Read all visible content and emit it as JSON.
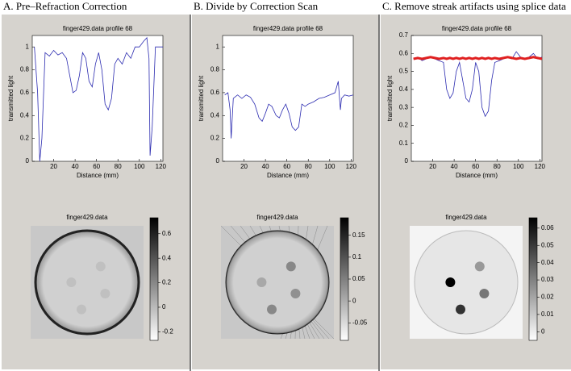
{
  "chart_data": [
    {
      "type": "line",
      "title": "finger429.data profile 68",
      "xlabel": "Distance (mm)",
      "ylabel": "transmitted light",
      "x": [
        2,
        5,
        7,
        9,
        12,
        16,
        20,
        24,
        28,
        32,
        35,
        38,
        41,
        44,
        47,
        50,
        53,
        56,
        59,
        62,
        65,
        68,
        71,
        74,
        77,
        80,
        84,
        88,
        92,
        96,
        100,
        104,
        107,
        109,
        110,
        112,
        115,
        118,
        122
      ],
      "series": [
        {
          "color": "#2b2bb0",
          "values": [
            1,
            0.6,
            0,
            0.2,
            0.95,
            0.92,
            0.97,
            0.93,
            0.95,
            0.9,
            0.75,
            0.6,
            0.62,
            0.75,
            0.95,
            0.9,
            0.7,
            0.65,
            0.85,
            0.95,
            0.8,
            0.5,
            0.45,
            0.55,
            0.85,
            0.9,
            0.85,
            0.95,
            0.9,
            1.0,
            1.0,
            1.05,
            1.08,
            0.9,
            0.05,
            0.3,
            1.0,
            1.0,
            1.0
          ]
        }
      ],
      "xlim": [
        0,
        122
      ],
      "ylim": [
        0,
        1.1
      ],
      "xticks": [
        20,
        40,
        60,
        80,
        100,
        120
      ],
      "yticks": [
        0,
        0.2,
        0.4,
        0.6,
        0.8,
        1
      ]
    },
    {
      "type": "line",
      "title": "finger429.data profile 68",
      "xlabel": "Distance (mm)",
      "ylabel": "transmitted light",
      "x": [
        2,
        5,
        7,
        8,
        10,
        14,
        18,
        22,
        26,
        30,
        34,
        37,
        40,
        43,
        46,
        50,
        53,
        56,
        59,
        62,
        65,
        68,
        71,
        74,
        77,
        80,
        85,
        90,
        95,
        100,
        105,
        108,
        110,
        111,
        114,
        118,
        122
      ],
      "series": [
        {
          "color": "#2b2bb0",
          "values": [
            0.58,
            0.6,
            0.45,
            0.2,
            0.55,
            0.58,
            0.55,
            0.58,
            0.56,
            0.5,
            0.38,
            0.35,
            0.42,
            0.5,
            0.48,
            0.4,
            0.38,
            0.45,
            0.5,
            0.42,
            0.3,
            0.27,
            0.3,
            0.5,
            0.48,
            0.5,
            0.52,
            0.55,
            0.56,
            0.58,
            0.6,
            0.7,
            0.45,
            0.55,
            0.58,
            0.57,
            0.58
          ]
        }
      ],
      "xlim": [
        0,
        122
      ],
      "ylim": [
        0,
        1.1
      ],
      "xticks": [
        20,
        40,
        60,
        80,
        100,
        120
      ],
      "yticks": [
        0,
        0.2,
        0.4,
        0.6,
        0.8,
        1
      ]
    },
    {
      "type": "line",
      "title": "finger429.data profile 68",
      "xlabel": "Distance (mm)",
      "ylabel": "transmitted light",
      "x": [
        2,
        6,
        10,
        14,
        18,
        22,
        26,
        30,
        33,
        36,
        39,
        42,
        45,
        48,
        51,
        54,
        57,
        60,
        63,
        66,
        69,
        72,
        75,
        78,
        82,
        86,
        90,
        94,
        98,
        102,
        106,
        110,
        114,
        118,
        122
      ],
      "series": [
        {
          "color": "#2b2bb0",
          "values": [
            0.57,
            0.58,
            0.56,
            0.57,
            0.58,
            0.57,
            0.56,
            0.55,
            0.4,
            0.35,
            0.38,
            0.5,
            0.55,
            0.45,
            0.35,
            0.33,
            0.4,
            0.55,
            0.5,
            0.3,
            0.25,
            0.28,
            0.45,
            0.55,
            0.56,
            0.57,
            0.58,
            0.57,
            0.61,
            0.58,
            0.57,
            0.58,
            0.6,
            0.57,
            0.58
          ]
        },
        {
          "color": "#e02020",
          "values": [
            0.57,
            0.575,
            0.57,
            0.575,
            0.58,
            0.575,
            0.57,
            0.575,
            0.57,
            0.575,
            0.57,
            0.575,
            0.57,
            0.575,
            0.57,
            0.575,
            0.57,
            0.575,
            0.57,
            0.575,
            0.57,
            0.575,
            0.57,
            0.575,
            0.57,
            0.575,
            0.58,
            0.575,
            0.57,
            0.575,
            0.57,
            0.575,
            0.58,
            0.575,
            0.57
          ]
        }
      ],
      "xlim": [
        0,
        122
      ],
      "ylim": [
        0,
        0.7
      ],
      "xticks": [
        20,
        40,
        60,
        80,
        100,
        120
      ],
      "yticks": [
        0,
        0.1,
        0.2,
        0.3,
        0.4,
        0.5,
        0.6,
        0.7
      ]
    }
  ],
  "panels": [
    {
      "heading": "A. Pre–Refraction Correction",
      "image_title": "finger429.data",
      "clim": [
        -0.27,
        0.73
      ],
      "cticks": [
        -0.2,
        0,
        0.2,
        0.4,
        0.6
      ]
    },
    {
      "heading": "B. Divide by Correction Scan",
      "image_title": "finger429.data",
      "clim": [
        -0.09,
        0.19
      ],
      "cticks": [
        -0.05,
        0,
        0.05,
        0.1,
        0.15
      ]
    },
    {
      "heading": "C. Remove streak artifacts using splice data",
      "image_title": "finger429.data",
      "clim": [
        -0.005,
        0.066
      ],
      "cticks": [
        0,
        0.01,
        0.02,
        0.03,
        0.04,
        0.05,
        0.06
      ]
    }
  ]
}
